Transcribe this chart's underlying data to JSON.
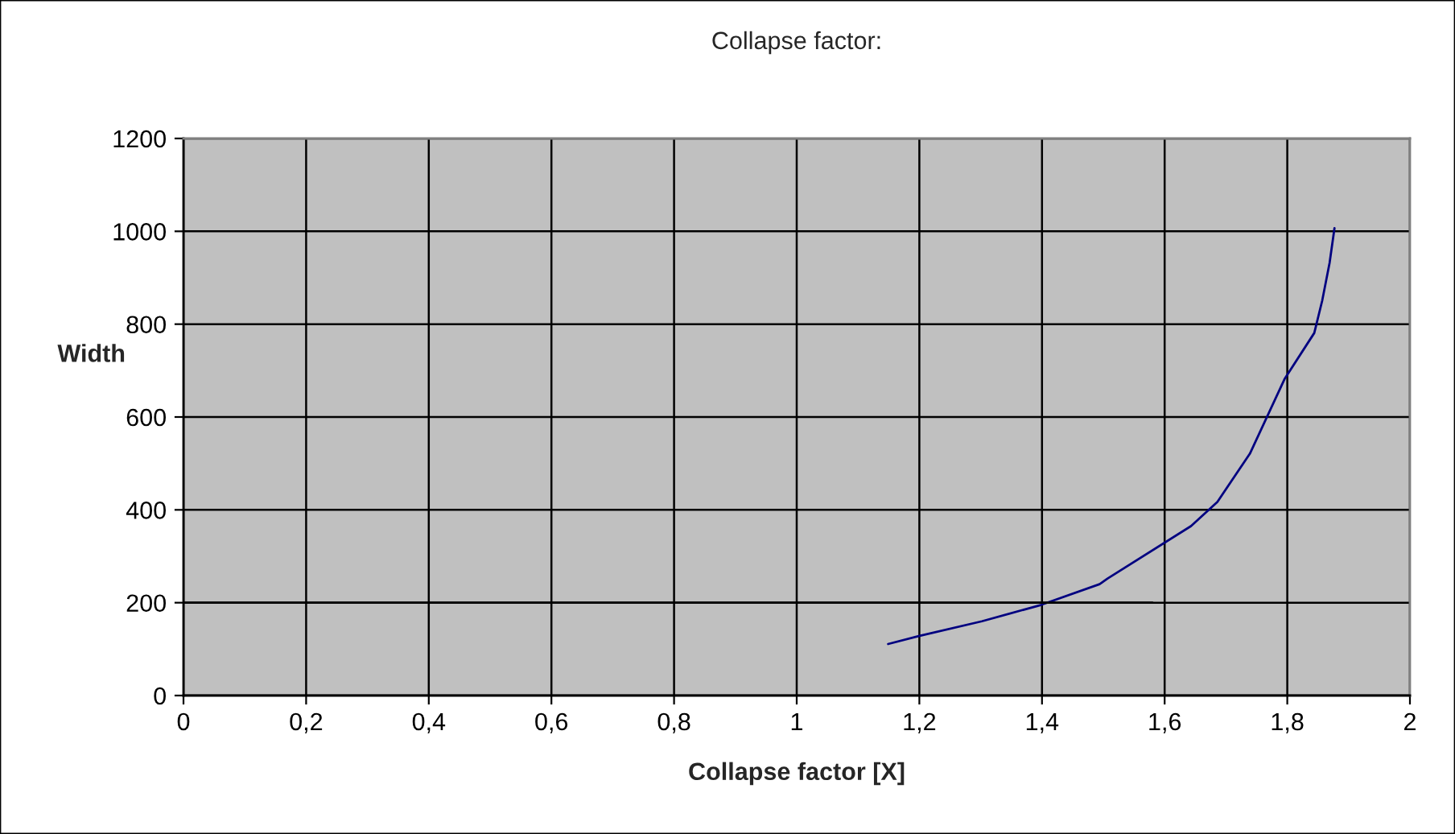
{
  "chart_data": {
    "type": "line",
    "title": "Collapse factor:",
    "xlabel": "Collapse factor [X]",
    "ylabel": "Width",
    "series": [
      {
        "color": "#000080",
        "x": [
          1.149,
          1.199,
          1.302,
          1.398,
          1.494,
          1.507,
          1.643,
          1.686,
          1.739,
          1.796,
          1.844,
          1.857,
          1.869,
          1.877
        ],
        "values": [
          111,
          128,
          160,
          195,
          240,
          252,
          365,
          417,
          521,
          683,
          781,
          851,
          932,
          1007
        ]
      },
      {
        "color": "#000000",
        "x": [
          0,
          1.58
        ],
        "values": [
          200,
          200
        ]
      }
    ],
    "xlim": [
      0,
      2
    ],
    "xticks": [
      0,
      {
        "value": 0.2,
        "label": "0,2"
      },
      {
        "value": 0.4,
        "label": "0,4"
      },
      {
        "value": 0.6,
        "label": "0,6"
      },
      {
        "value": 0.8,
        "label": "0,8"
      },
      1,
      {
        "value": 1.2,
        "label": "1,2"
      },
      {
        "value": 1.4,
        "label": "1,4"
      },
      {
        "value": 1.6,
        "label": "1,6"
      },
      {
        "value": 1.8,
        "label": "1,8"
      },
      2
    ],
    "ylim": [
      0,
      1200
    ],
    "yticks": [
      0,
      200,
      400,
      600,
      800,
      1000,
      1200
    ],
    "grid": true,
    "legend": false,
    "marker": "none",
    "line_style": "solid"
  }
}
